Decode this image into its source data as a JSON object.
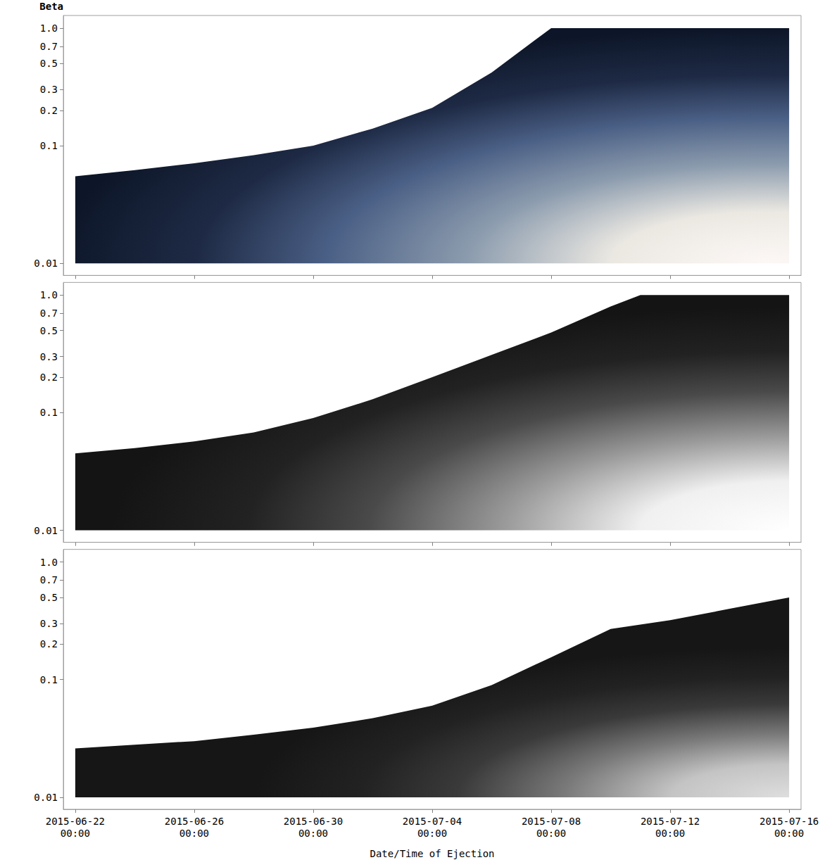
{
  "chart_data": [
    {
      "type": "area",
      "y_label": "Beta",
      "log": "y",
      "grid": false,
      "tick_labels": "y",
      "color": "#0d1628",
      "x": [
        "2015-06-22 00:00",
        "2015-06-24 00:00",
        "2015-06-26 00:00",
        "2015-06-28 00:00",
        "2015-06-30 00:00",
        "2015-07-02 00:00",
        "2015-07-04 00:00",
        "2015-07-06 00:00",
        "2015-07-08 00:00",
        "2015-07-10 00:00",
        "2015-07-12 00:00",
        "2015-07-14 00:00",
        "2015-07-16 00:00"
      ],
      "values": [
        0.055,
        0.062,
        0.071,
        0.083,
        0.1,
        0.14,
        0.21,
        0.42,
        1.0,
        1.0,
        1.0,
        1.0,
        1.0
      ],
      "lower": [
        0.01,
        0.01,
        0.01,
        0.01,
        0.01,
        0.01,
        0.01,
        0.01,
        0.01,
        0.01,
        0.01,
        0.01,
        0.01
      ],
      "xlim": [
        "2015-06-21 14:24",
        "2015-07-16 09:36"
      ],
      "xticks": [
        "2015-06-22 00:00",
        "2015-06-26 00:00",
        "2015-06-30 00:00",
        "2015-07-04 00:00",
        "2015-07-08 00:00",
        "2015-07-12 00:00",
        "2015-07-16 00:00"
      ],
      "ylim": [
        0.0079,
        1.28
      ],
      "yticks": [
        0.01,
        0.1,
        0.2,
        0.3,
        0.5,
        0.7,
        {
          "value": 1,
          "label": "1.0"
        }
      ]
    },
    {
      "type": "area",
      "log": "y",
      "grid": false,
      "tick_labels": "y",
      "color": "#141414",
      "x": [
        "2015-06-22 00:00",
        "2015-06-24 00:00",
        "2015-06-26 00:00",
        "2015-06-28 00:00",
        "2015-06-30 00:00",
        "2015-07-02 00:00",
        "2015-07-04 00:00",
        "2015-07-06 00:00",
        "2015-07-08 00:00",
        "2015-07-10 00:00",
        "2015-07-11 00:00",
        "2015-07-12 00:00",
        "2015-07-14 00:00",
        "2015-07-16 00:00"
      ],
      "values": [
        0.045,
        0.05,
        0.057,
        0.068,
        0.09,
        0.13,
        0.2,
        0.31,
        0.48,
        0.8,
        1.0,
        1.0,
        1.0,
        1.0
      ],
      "lower": [
        0.01,
        0.01,
        0.01,
        0.01,
        0.01,
        0.01,
        0.01,
        0.01,
        0.01,
        0.01,
        0.01,
        0.01,
        0.01,
        0.01
      ],
      "xlim": [
        "2015-06-21 14:24",
        "2015-07-16 09:36"
      ],
      "xticks": [
        "2015-06-22 00:00",
        "2015-06-26 00:00",
        "2015-06-30 00:00",
        "2015-07-04 00:00",
        "2015-07-08 00:00",
        "2015-07-12 00:00",
        "2015-07-16 00:00"
      ],
      "ylim": [
        0.0079,
        1.28
      ],
      "yticks": [
        0.01,
        0.1,
        0.2,
        0.3,
        0.5,
        0.7,
        {
          "value": 1,
          "label": "1.0"
        }
      ]
    },
    {
      "type": "area",
      "x_label": "Date/Time of Ejection",
      "log": "y",
      "grid": false,
      "color": "#161616",
      "x": [
        "2015-06-22 00:00",
        "2015-06-24 00:00",
        "2015-06-26 00:00",
        "2015-06-28 00:00",
        "2015-06-30 00:00",
        "2015-07-02 00:00",
        "2015-07-04 00:00",
        "2015-07-06 00:00",
        "2015-07-08 00:00",
        "2015-07-10 00:00",
        "2015-07-12 00:00",
        "2015-07-14 00:00",
        "2015-07-16 00:00"
      ],
      "values": [
        0.026,
        0.028,
        0.03,
        0.034,
        0.039,
        0.047,
        0.06,
        0.09,
        0.155,
        0.27,
        0.32,
        0.4,
        0.5
      ],
      "lower": [
        0.01,
        0.01,
        0.01,
        0.01,
        0.01,
        0.01,
        0.01,
        0.01,
        0.01,
        0.01,
        0.01,
        0.01,
        0.01
      ],
      "xlim": [
        "2015-06-21 14:24",
        "2015-07-16 09:36"
      ],
      "xticks": [
        "2015-06-22 00:00",
        "2015-06-26 00:00",
        "2015-06-30 00:00",
        "2015-07-04 00:00",
        "2015-07-08 00:00",
        "2015-07-12 00:00",
        "2015-07-16 00:00"
      ],
      "ylim": [
        0.0079,
        1.28
      ],
      "yticks": [
        0.01,
        0.1,
        0.2,
        0.3,
        0.5,
        0.7,
        {
          "value": 1,
          "label": "1.0"
        }
      ]
    }
  ]
}
